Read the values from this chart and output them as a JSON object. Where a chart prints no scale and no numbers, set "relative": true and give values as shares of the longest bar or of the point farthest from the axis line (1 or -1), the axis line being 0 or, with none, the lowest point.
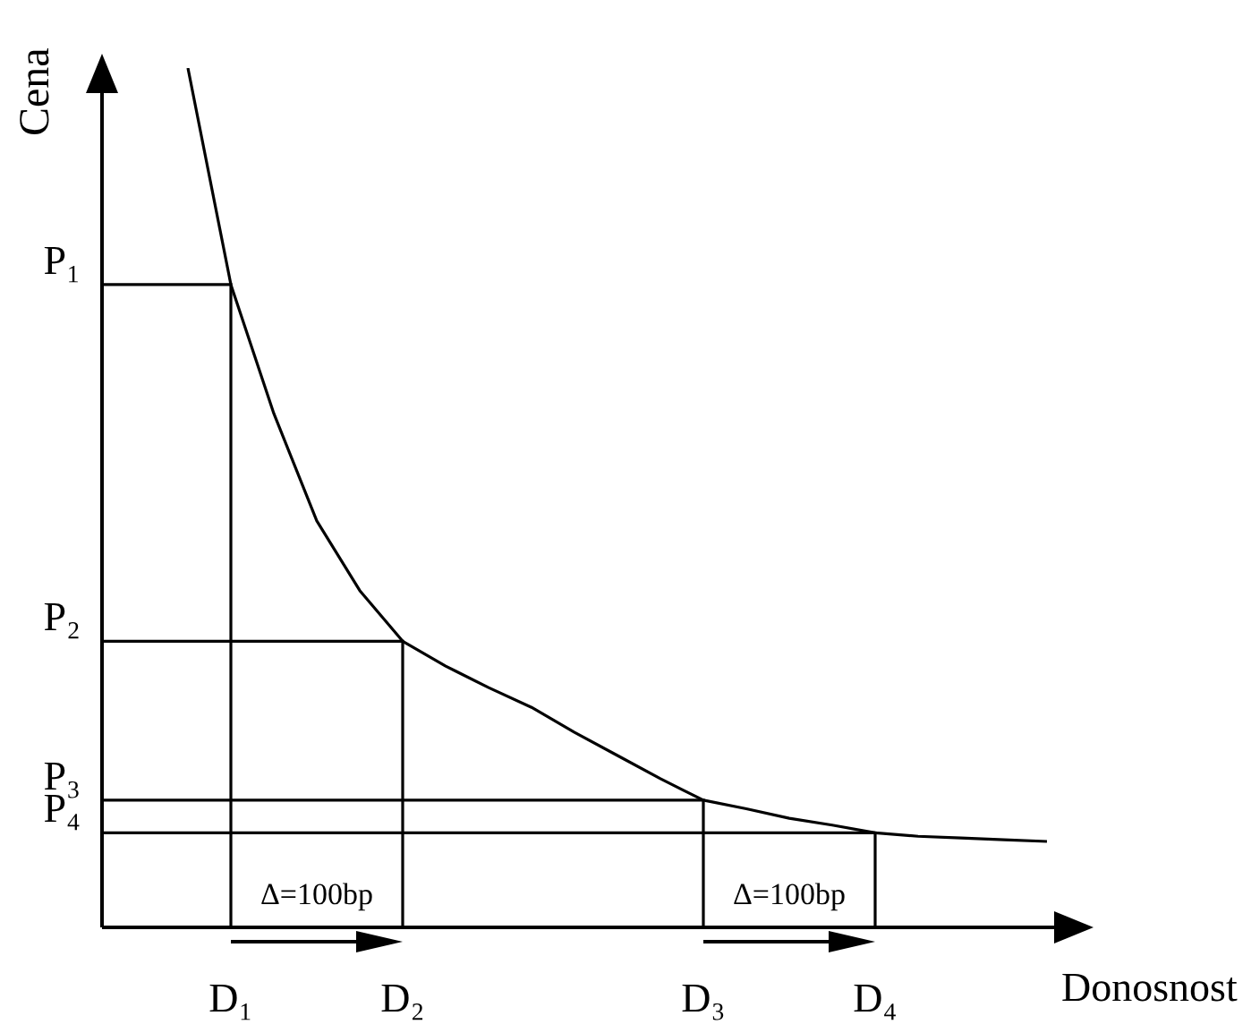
{
  "chart_data": {
    "type": "line",
    "xlabel": "Donosnost",
    "ylabel": "Cena",
    "relative": true,
    "categories": [
      null,
      null,
      null,
      "D₁",
      null,
      null,
      null,
      "D₂",
      null,
      null,
      null,
      null,
      null,
      null,
      "D₃",
      null,
      null,
      null,
      "D₄",
      null,
      null,
      null,
      null
    ],
    "series": [
      {
        "color": "#000000",
        "values": [
          null,
          null,
          1,
          0.748,
          0.598,
          0.473,
          0.392,
          0.333,
          0.304,
          0.279,
          0.256,
          0.227,
          0.2,
          0.173,
          0.148,
          0.138,
          0.127,
          0.119,
          0.11,
          0.106,
          0.104,
          0.102,
          0.1
        ]
      }
    ],
    "annotations": [
      "P₁",
      "P₂",
      "P₃",
      "P₄",
      "Δ=100bp",
      "Δ=100bp"
    ]
  }
}
